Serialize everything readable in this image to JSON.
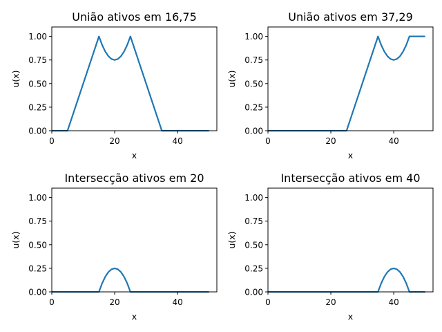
{
  "chart_data": [
    {
      "type": "line",
      "title": "União ativos em 16,75",
      "xlabel": "x",
      "ylabel": "u(x)",
      "xlim": [
        0,
        52.5
      ],
      "ylim": [
        0,
        1.1
      ],
      "xticks": [
        0,
        20,
        40
      ],
      "xtick_labels": [
        "0",
        "20",
        "40"
      ],
      "yticks": [
        0,
        0.25,
        0.5,
        0.75,
        1.0
      ],
      "ytick_labels": [
        "0.00",
        "0.25",
        "0.50",
        "0.75",
        "1.00"
      ],
      "grid": false,
      "series": [
        {
          "color": "#1f77b4",
          "x": [
            0,
            5,
            15,
            16,
            17,
            18,
            19,
            20,
            21,
            22,
            23,
            24,
            25,
            35,
            50
          ],
          "y": [
            0,
            0,
            1.0,
            0.91,
            0.84,
            0.79,
            0.76,
            0.75,
            0.76,
            0.79,
            0.84,
            0.91,
            1.0,
            0,
            0
          ]
        }
      ]
    },
    {
      "type": "line",
      "title": "União ativos em 37,29",
      "xlabel": "x",
      "ylabel": "u(x)",
      "xlim": [
        0,
        52.5
      ],
      "ylim": [
        0,
        1.1
      ],
      "xticks": [
        0,
        20,
        40
      ],
      "xtick_labels": [
        "0",
        "20",
        "40"
      ],
      "yticks": [
        0,
        0.25,
        0.5,
        0.75,
        1.0
      ],
      "ytick_labels": [
        "0.00",
        "0.25",
        "0.50",
        "0.75",
        "1.00"
      ],
      "grid": false,
      "series": [
        {
          "color": "#1f77b4",
          "x": [
            0,
            25,
            35,
            36,
            37,
            38,
            39,
            40,
            41,
            42,
            43,
            44,
            45,
            50
          ],
          "y": [
            0,
            0,
            1.0,
            0.91,
            0.84,
            0.79,
            0.76,
            0.75,
            0.76,
            0.79,
            0.84,
            0.91,
            1.0,
            1.0
          ]
        }
      ]
    },
    {
      "type": "line",
      "title": "Intersecção ativos em 20",
      "xlabel": "x",
      "ylabel": "u(x)",
      "xlim": [
        0,
        52.5
      ],
      "ylim": [
        0,
        1.1
      ],
      "xticks": [
        0,
        20,
        40
      ],
      "xtick_labels": [
        "0",
        "20",
        "40"
      ],
      "yticks": [
        0,
        0.25,
        0.5,
        0.75,
        1.0
      ],
      "ytick_labels": [
        "0.00",
        "0.25",
        "0.50",
        "0.75",
        "1.00"
      ],
      "grid": false,
      "series": [
        {
          "color": "#1f77b4",
          "x": [
            0,
            15,
            16,
            17,
            18,
            19,
            20,
            21,
            22,
            23,
            24,
            25,
            50
          ],
          "y": [
            0,
            0,
            0.09,
            0.16,
            0.21,
            0.24,
            0.25,
            0.24,
            0.21,
            0.16,
            0.09,
            0,
            0
          ]
        }
      ]
    },
    {
      "type": "line",
      "title": "Intersecção ativos em 40",
      "xlabel": "x",
      "ylabel": "u(x)",
      "xlim": [
        0,
        52.5
      ],
      "ylim": [
        0,
        1.1
      ],
      "xticks": [
        0,
        20,
        40
      ],
      "xtick_labels": [
        "0",
        "20",
        "40"
      ],
      "yticks": [
        0,
        0.25,
        0.5,
        0.75,
        1.0
      ],
      "ytick_labels": [
        "0.00",
        "0.25",
        "0.50",
        "0.75",
        "1.00"
      ],
      "grid": false,
      "series": [
        {
          "color": "#1f77b4",
          "x": [
            0,
            35,
            36,
            37,
            38,
            39,
            40,
            41,
            42,
            43,
            44,
            45,
            50
          ],
          "y": [
            0,
            0,
            0.09,
            0.16,
            0.21,
            0.24,
            0.25,
            0.24,
            0.21,
            0.16,
            0.09,
            0,
            0
          ]
        }
      ]
    }
  ]
}
